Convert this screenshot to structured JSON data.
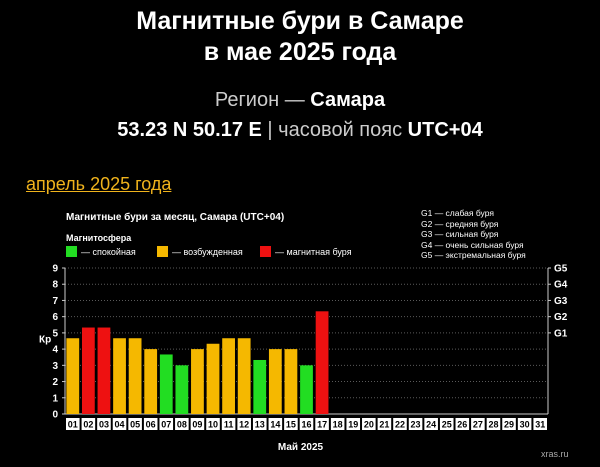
{
  "header": {
    "title_line1": "Магнитные бури в Самаре",
    "title_line2": "в мае 2025 года",
    "region_prefix": "Регион — ",
    "region_name": "Самара",
    "coords": "53.23 N 50.17 E",
    "tz_prefix": " | часовой пояс ",
    "tz": "UTC+04"
  },
  "prev_month_link": "апрель 2025 года",
  "legend": {
    "section_label": "Магнитосфера",
    "items": [
      {
        "label": "— спокойная",
        "color": "#22dd22"
      },
      {
        "label": "— возбужденная",
        "color": "#f5b800"
      },
      {
        "label": "— магнитная буря",
        "color": "#ee1111"
      }
    ],
    "g_scale": [
      "G1 — слабая буря",
      "G2 — средняя буря",
      "G3 — сильная буря",
      "G4 — очень сильная буря",
      "G5 — экстремальная буря"
    ]
  },
  "watermark": "xras.ru",
  "chart_data": {
    "type": "bar",
    "title": "Магнитные бури за месяц, Самара (UTC+04)",
    "xlabel": "Май 2025",
    "ylabel": "Кр",
    "ylim": [
      0,
      9
    ],
    "yticks": [
      "0",
      "1",
      "2",
      "3",
      "4",
      "5",
      "6",
      "7",
      "8",
      "9"
    ],
    "right_ticks": [
      {
        "label": "G1",
        "value": 5
      },
      {
        "label": "G2",
        "value": 6
      },
      {
        "label": "G3",
        "value": 7
      },
      {
        "label": "G4",
        "value": 8
      },
      {
        "label": "G5",
        "value": 9
      }
    ],
    "categories": [
      "01",
      "02",
      "03",
      "04",
      "05",
      "06",
      "07",
      "08",
      "09",
      "10",
      "11",
      "12",
      "13",
      "14",
      "15",
      "16",
      "17",
      "18",
      "19",
      "20",
      "21",
      "22",
      "23",
      "24",
      "25",
      "26",
      "27",
      "28",
      "29",
      "30",
      "31"
    ],
    "values": [
      4.67,
      5.33,
      5.33,
      4.67,
      4.67,
      4.0,
      3.67,
      3.0,
      4.0,
      4.33,
      4.67,
      4.67,
      3.33,
      4.0,
      4.0,
      3.0,
      6.33,
      null,
      null,
      null,
      null,
      null,
      null,
      null,
      null,
      null,
      null,
      null,
      null,
      null,
      null
    ],
    "colors": {
      "quiet": "#22dd22",
      "active": "#f5b800",
      "storm": "#ee1111"
    },
    "grid": true
  }
}
